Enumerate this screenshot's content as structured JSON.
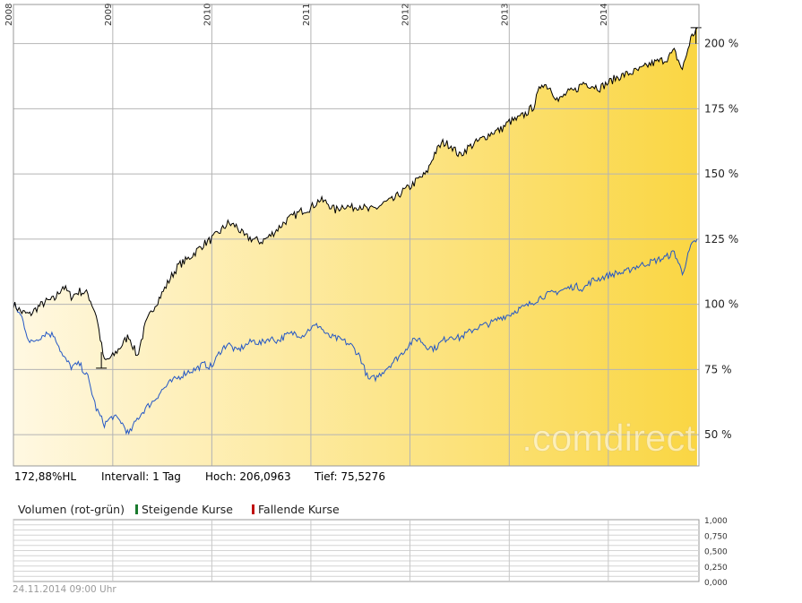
{
  "watermark": ".comdirect",
  "info": {
    "performance": "172,88%HL",
    "interval": "Intervall: 1 Tag",
    "high": "Hoch: 206,0963",
    "low": "Tief: 75,5276"
  },
  "volume": {
    "title": "Volumen (rot-grün)",
    "rising_label": "Steigende Kurse",
    "falling_label": "Fallende Kurse",
    "rising_color": "#1a7a2e",
    "falling_color": "#c01010",
    "ytick_labels": [
      "1,000",
      "0,750",
      "0,500",
      "0,250",
      "0,000"
    ]
  },
  "timestamp": "24.11.2014 09:00 Uhr",
  "colors": {
    "fill_start": "#fff8e2",
    "fill_end": "#fad643",
    "primary_line": "#000000",
    "benchmark_line": "#2457c5",
    "grid": "#b4b4b4"
  },
  "chart_data": {
    "type": "line",
    "x_type": "date",
    "xlim": [
      "2008-01-01",
      "2014-12-01"
    ],
    "ylim": [
      38,
      215
    ],
    "yticks": [
      50,
      75,
      100,
      125,
      150,
      175,
      200
    ],
    "ytick_labels": [
      "50 %",
      "75 %",
      "100 %",
      "125 %",
      "150 %",
      "175 %",
      "200 %"
    ],
    "xticks": [
      "2008-01-01",
      "2009-01-01",
      "2010-01-01",
      "2011-01-01",
      "2012-01-01",
      "2013-01-01",
      "2014-01-01"
    ],
    "xtick_labels": [
      "2008",
      "2009",
      "2010",
      "2011",
      "2012",
      "2013",
      "2014"
    ],
    "grid": true,
    "high_marker": {
      "x": "2014-11-20",
      "y": 206.1
    },
    "low_marker": {
      "x": "2008-11-20",
      "y": 75.5
    },
    "series": [
      {
        "style": "area",
        "x": [
          "2008-01-01",
          "2008-02-01",
          "2008-03-01",
          "2008-04-01",
          "2008-05-01",
          "2008-06-01",
          "2008-07-01",
          "2008-08-01",
          "2008-09-01",
          "2008-10-01",
          "2008-11-01",
          "2008-12-01",
          "2009-01-01",
          "2009-02-01",
          "2009-03-01",
          "2009-04-01",
          "2009-05-01",
          "2009-06-01",
          "2009-07-01",
          "2009-08-01",
          "2009-09-01",
          "2009-10-01",
          "2009-11-01",
          "2009-12-01",
          "2010-01-01",
          "2010-02-01",
          "2010-03-01",
          "2010-04-01",
          "2010-05-01",
          "2010-06-01",
          "2010-07-01",
          "2010-08-01",
          "2010-09-01",
          "2010-10-01",
          "2010-11-01",
          "2010-12-01",
          "2011-01-01",
          "2011-02-01",
          "2011-03-01",
          "2011-04-01",
          "2011-05-01",
          "2011-06-01",
          "2011-07-01",
          "2011-08-01",
          "2011-09-01",
          "2011-10-01",
          "2011-11-01",
          "2011-12-01",
          "2012-01-01",
          "2012-02-01",
          "2012-03-01",
          "2012-04-01",
          "2012-05-01",
          "2012-06-01",
          "2012-07-01",
          "2012-08-01",
          "2012-09-01",
          "2012-10-01",
          "2012-11-01",
          "2012-12-01",
          "2013-01-01",
          "2013-02-01",
          "2013-03-01",
          "2013-04-01",
          "2013-05-01",
          "2013-06-01",
          "2013-07-01",
          "2013-08-01",
          "2013-09-01",
          "2013-10-01",
          "2013-11-01",
          "2013-12-01",
          "2014-01-01",
          "2014-02-01",
          "2014-03-01",
          "2014-04-01",
          "2014-05-01",
          "2014-06-01",
          "2014-07-01",
          "2014-08-01",
          "2014-09-01",
          "2014-10-01",
          "2014-11-01",
          "2014-11-24"
        ],
        "values": [
          100,
          97,
          96,
          99,
          101,
          102,
          107,
          103,
          105,
          104,
          96,
          78,
          80,
          84,
          88,
          80,
          92,
          99,
          104,
          110,
          115,
          117,
          120,
          123,
          125,
          128,
          131,
          130,
          126,
          125,
          124,
          126,
          129,
          132,
          134,
          136,
          137,
          140,
          139,
          136,
          138,
          137,
          138,
          136,
          137,
          139,
          140,
          143,
          145,
          148,
          150,
          158,
          162,
          161,
          157,
          160,
          162,
          164,
          166,
          167,
          170,
          171,
          173,
          176,
          185,
          183,
          178,
          181,
          182,
          185,
          184,
          183,
          185,
          187,
          188,
          189,
          190,
          192,
          193,
          194,
          197,
          190,
          202,
          206
        ],
        "color": "#000000"
      },
      {
        "style": "line",
        "x": [
          "2008-01-01",
          "2008-02-01",
          "2008-03-01",
          "2008-04-01",
          "2008-05-01",
          "2008-06-01",
          "2008-07-01",
          "2008-08-01",
          "2008-09-01",
          "2008-10-01",
          "2008-11-01",
          "2008-12-01",
          "2009-01-01",
          "2009-02-01",
          "2009-03-01",
          "2009-04-01",
          "2009-05-01",
          "2009-06-01",
          "2009-07-01",
          "2009-08-01",
          "2009-09-01",
          "2009-10-01",
          "2009-11-01",
          "2009-12-01",
          "2010-01-01",
          "2010-02-01",
          "2010-03-01",
          "2010-04-01",
          "2010-05-01",
          "2010-06-01",
          "2010-07-01",
          "2010-08-01",
          "2010-09-01",
          "2010-10-01",
          "2010-11-01",
          "2010-12-01",
          "2011-01-01",
          "2011-02-01",
          "2011-03-01",
          "2011-04-01",
          "2011-05-01",
          "2011-06-01",
          "2011-07-01",
          "2011-08-01",
          "2011-09-01",
          "2011-10-01",
          "2011-11-01",
          "2011-12-01",
          "2012-01-01",
          "2012-02-01",
          "2012-03-01",
          "2012-04-01",
          "2012-05-01",
          "2012-06-01",
          "2012-07-01",
          "2012-08-01",
          "2012-09-01",
          "2012-10-01",
          "2012-11-01",
          "2012-12-01",
          "2013-01-01",
          "2013-02-01",
          "2013-03-01",
          "2013-04-01",
          "2013-05-01",
          "2013-06-01",
          "2013-07-01",
          "2013-08-01",
          "2013-09-01",
          "2013-10-01",
          "2013-11-01",
          "2013-12-01",
          "2014-01-01",
          "2014-02-01",
          "2014-03-01",
          "2014-04-01",
          "2014-05-01",
          "2014-06-01",
          "2014-07-01",
          "2014-08-01",
          "2014-09-01",
          "2014-10-01",
          "2014-11-01",
          "2014-11-24"
        ],
        "values": [
          100,
          95,
          85,
          87,
          89,
          88,
          80,
          76,
          77,
          72,
          60,
          54,
          57,
          55,
          50,
          56,
          60,
          63,
          67,
          70,
          72,
          74,
          75,
          77,
          76,
          82,
          85,
          82,
          84,
          86,
          85,
          87,
          86,
          88,
          89,
          88,
          91,
          92,
          88,
          87,
          86,
          84,
          80,
          71,
          72,
          75,
          78,
          81,
          85,
          87,
          84,
          83,
          86,
          88,
          87,
          89,
          91,
          92,
          93,
          95,
          96,
          98,
          99,
          101,
          103,
          104,
          105,
          106,
          107,
          106,
          109,
          110,
          111,
          112,
          112,
          114,
          115,
          116,
          117,
          118,
          120,
          112,
          122,
          125
        ],
        "color": "#2457c5"
      }
    ]
  }
}
